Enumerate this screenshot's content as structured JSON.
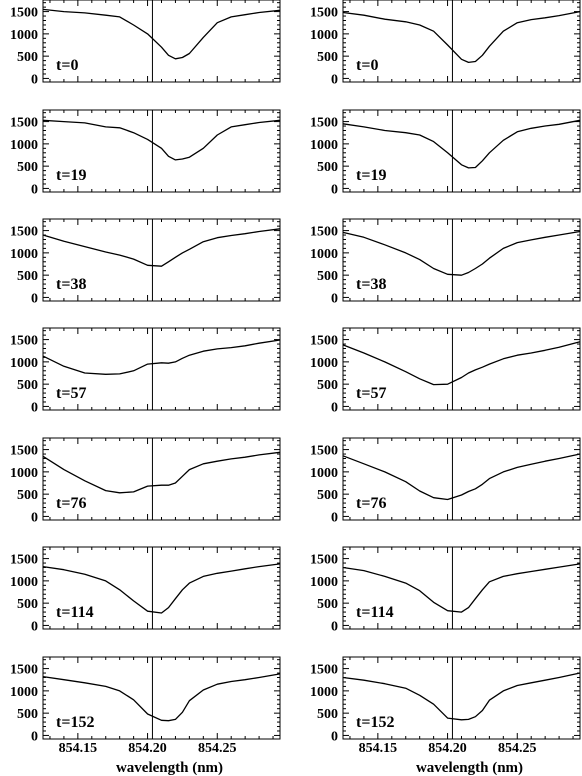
{
  "figure": {
    "x_axis_title": "wavelength (nm)"
  },
  "chart_data": {
    "type": "line",
    "xlabel": "wavelength (nm)",
    "ylabel": "",
    "xlim": [
      854.125,
      854.295
    ],
    "ylim": [
      -80,
      1760
    ],
    "x_ticks": [
      854.15,
      854.2,
      854.25
    ],
    "x_tick_labels": [
      "854.15",
      "854.20",
      "854.25"
    ],
    "y_ticks": [
      0,
      500,
      1000,
      1500
    ],
    "y_tick_labels": [
      "0",
      "500",
      "1000",
      "1500"
    ],
    "reference_line_x": 854.2035,
    "x": [
      854.125,
      854.14,
      854.155,
      854.17,
      854.18,
      854.19,
      854.2,
      854.21,
      854.215,
      854.22,
      854.225,
      854.23,
      854.24,
      854.25,
      854.26,
      854.27,
      854.28,
      854.295
    ],
    "grid": false,
    "legend": "none",
    "columns": [
      {
        "panels": [
          {
            "label": "t=0",
            "values": [
              1550,
              1500,
              1470,
              1420,
              1380,
              1200,
              1000,
              700,
              520,
              440,
              470,
              560,
              920,
              1250,
              1380,
              1430,
              1480,
              1530
            ]
          },
          {
            "label": "t=19",
            "values": [
              1530,
              1500,
              1470,
              1380,
              1360,
              1250,
              1100,
              900,
              720,
              640,
              660,
              700,
              900,
              1200,
              1380,
              1430,
              1480,
              1530
            ]
          },
          {
            "label": "t=38",
            "values": [
              1400,
              1260,
              1140,
              1020,
              950,
              860,
              720,
              700,
              800,
              900,
              1000,
              1080,
              1250,
              1340,
              1390,
              1430,
              1480,
              1540
            ]
          },
          {
            "label": "t=57",
            "values": [
              1130,
              900,
              750,
              720,
              730,
              800,
              950,
              980,
              970,
              1000,
              1080,
              1150,
              1240,
              1290,
              1320,
              1360,
              1420,
              1490
            ]
          },
          {
            "label": "t=76",
            "values": [
              1350,
              1050,
              800,
              580,
              530,
              550,
              680,
              700,
              700,
              750,
              900,
              1050,
              1180,
              1240,
              1290,
              1330,
              1380,
              1440
            ]
          },
          {
            "label": "t=114",
            "values": [
              1320,
              1250,
              1150,
              1000,
              800,
              550,
              320,
              280,
              400,
              600,
              800,
              950,
              1100,
              1170,
              1220,
              1270,
              1320,
              1380
            ]
          },
          {
            "label": "t=152",
            "values": [
              1320,
              1250,
              1180,
              1100,
              1000,
              800,
              480,
              340,
              330,
              360,
              520,
              780,
              1020,
              1150,
              1210,
              1250,
              1300,
              1380
            ]
          }
        ]
      },
      {
        "panels": [
          {
            "label": "t=0",
            "values": [
              1480,
              1420,
              1330,
              1270,
              1200,
              1060,
              750,
              430,
              360,
              380,
              520,
              720,
              1060,
              1250,
              1320,
              1360,
              1410,
              1500
            ]
          },
          {
            "label": "t=19",
            "values": [
              1450,
              1380,
              1300,
              1250,
              1200,
              1050,
              800,
              530,
              460,
              470,
              620,
              800,
              1080,
              1270,
              1350,
              1400,
              1440,
              1530
            ]
          },
          {
            "label": "t=38",
            "values": [
              1460,
              1350,
              1180,
              1000,
              850,
              650,
              520,
              500,
              560,
              650,
              750,
              880,
              1100,
              1230,
              1290,
              1350,
              1400,
              1480
            ]
          },
          {
            "label": "t=57",
            "values": [
              1380,
              1200,
              1000,
              780,
              620,
              490,
              500,
              650,
              750,
              820,
              880,
              950,
              1070,
              1150,
              1200,
              1260,
              1330,
              1450
            ]
          },
          {
            "label": "t=76",
            "values": [
              1360,
              1180,
              1000,
              780,
              570,
              420,
              380,
              480,
              560,
              620,
              720,
              850,
              1000,
              1100,
              1170,
              1240,
              1300,
              1400
            ]
          },
          {
            "label": "t=114",
            "values": [
              1300,
              1230,
              1100,
              950,
              780,
              520,
              330,
              300,
              400,
              600,
              800,
              980,
              1100,
              1160,
              1210,
              1260,
              1310,
              1380
            ]
          },
          {
            "label": "t=152",
            "values": [
              1300,
              1240,
              1160,
              1060,
              900,
              700,
              390,
              350,
              360,
              420,
              560,
              790,
              1000,
              1120,
              1180,
              1240,
              1300,
              1400
            ]
          }
        ]
      }
    ]
  }
}
